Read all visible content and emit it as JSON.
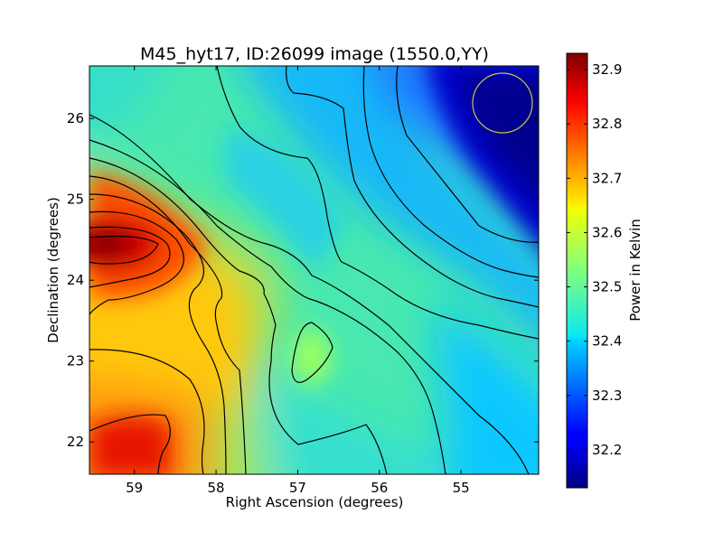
{
  "chart_data": {
    "type": "heatmap",
    "title": "M45_hyt17, ID:26099 image (1550.0,YY)",
    "xlabel": "Right Ascension (degrees)",
    "ylabel": "Declination (degrees)",
    "xlim": [
      59.55,
      54.05
    ],
    "ylim": [
      21.6,
      26.65
    ],
    "x_ticks": [
      59,
      58,
      57,
      56,
      55
    ],
    "x_tick_labels": [
      "59",
      "58",
      "57",
      "56",
      "55"
    ],
    "y_ticks": [
      22,
      23,
      24,
      25,
      26
    ],
    "y_tick_labels": [
      "22",
      "23",
      "24",
      "25",
      "26"
    ],
    "colorbar": {
      "label": "Power in Kelvin",
      "range": [
        32.13,
        32.93
      ],
      "ticks": [
        32.2,
        32.3,
        32.4,
        32.5,
        32.6,
        32.7,
        32.8,
        32.9
      ],
      "tick_labels": [
        "32.2",
        "32.3",
        "32.4",
        "32.5",
        "32.6",
        "32.7",
        "32.8",
        "32.9"
      ],
      "colormap": "jet"
    },
    "value_estimates": [
      {
        "ra": 59.35,
        "dec": 24.4,
        "value": 32.91
      },
      {
        "ra": 59.0,
        "dec": 22.0,
        "value": 32.78
      },
      {
        "ra": 58.5,
        "dec": 24.4,
        "value": 32.68
      },
      {
        "ra": 57.8,
        "dec": 23.5,
        "value": 32.6
      },
      {
        "ra": 56.8,
        "dec": 23.2,
        "value": 32.52
      },
      {
        "ra": 56.0,
        "dec": 24.6,
        "value": 32.38
      },
      {
        "ra": 58.2,
        "dec": 26.0,
        "value": 32.45
      },
      {
        "ra": 54.5,
        "dec": 26.2,
        "value": 32.14
      },
      {
        "ra": 54.3,
        "dec": 22.0,
        "value": 32.4
      }
    ],
    "beam_marker": {
      "ra": 54.45,
      "dec": 26.18,
      "color": "#c8c832",
      "shape": "circle"
    },
    "grid": false,
    "contours": true
  }
}
